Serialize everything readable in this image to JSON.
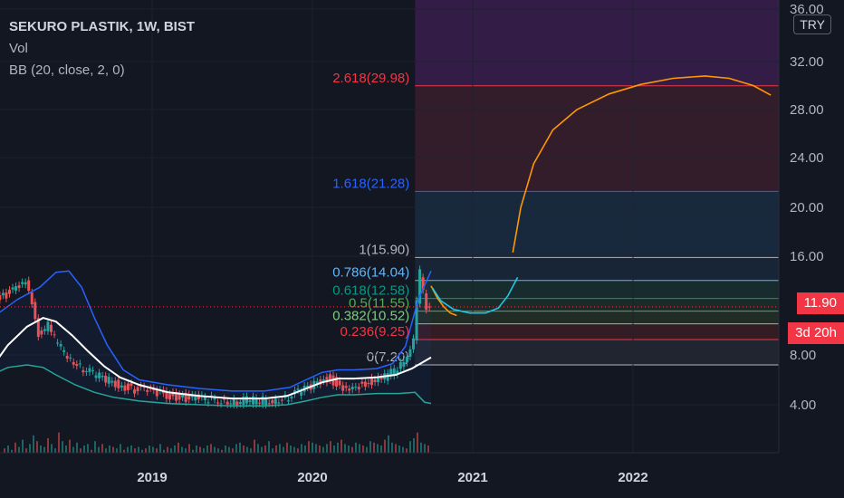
{
  "header": {
    "title": "SEKURO PLASTIK, 1W, BIST",
    "indicator_vol": "Vol",
    "indicator_bb": "BB (20, close, 2, 0)",
    "currency": "TRY"
  },
  "price_tags": {
    "last_price": "11.90",
    "countdown": "3d 20h"
  },
  "colors": {
    "background": "#131722",
    "up": "#26a69a",
    "down": "#ef5350",
    "bb_upper": "#2962ff",
    "bb_basis": "#ffffff",
    "bb_lower": "#26a69a",
    "projection": "#ff9800",
    "cyan_path": "#22c5e8",
    "last_price": "#f23645"
  },
  "chart_data": {
    "type": "candlestick",
    "y_axis": {
      "ticks": [
        "36.00",
        "32.00",
        "28.00",
        "24.00",
        "20.00",
        "16.00",
        "8.00",
        "4.00"
      ],
      "tick_values": [
        36,
        32,
        28,
        24,
        20,
        16,
        8,
        4
      ]
    },
    "x_axis": {
      "ticks": [
        "2019",
        "2020",
        "2021",
        "2022"
      ],
      "tick_values": [
        2019.0,
        2020.0,
        2021.0,
        2022.0
      ]
    },
    "last_price": 11.9,
    "fibonacci": [
      {
        "label": "0(7.20)",
        "level": 0,
        "price": 7.2,
        "color": "#b2b5be"
      },
      {
        "label": "0.236(9.25)",
        "level": 0.236,
        "price": 9.25,
        "color": "#f23645"
      },
      {
        "label": "0.382(10.52)",
        "level": 0.382,
        "price": 10.52,
        "color": "#81c784"
      },
      {
        "label": "0.5(11.55)",
        "level": 0.5,
        "price": 11.55,
        "color": "#4caf50"
      },
      {
        "label": "0.618(12.58)",
        "level": 0.618,
        "price": 12.58,
        "color": "#089981"
      },
      {
        "label": "0.786(14.04)",
        "level": 0.786,
        "price": 14.04,
        "color": "#64b5f6"
      },
      {
        "label": "1(15.90)",
        "level": 1,
        "price": 15.9,
        "color": "#b2b5be"
      },
      {
        "label": "1.618(21.28)",
        "level": 1.618,
        "price": 21.28,
        "color": "#2962ff"
      },
      {
        "label": "2.618(29.98)",
        "level": 2.618,
        "price": 29.98,
        "color": "#f23645"
      }
    ],
    "fib_start": 2020.64,
    "close_series": [
      [
        2018.0,
        12.2
      ],
      [
        2018.08,
        12.8
      ],
      [
        2018.16,
        13.3
      ],
      [
        2018.22,
        13.7
      ],
      [
        2018.26,
        12.0
      ],
      [
        2018.3,
        9.8
      ],
      [
        2018.36,
        10.4
      ],
      [
        2018.42,
        8.8
      ],
      [
        2018.48,
        8.0
      ],
      [
        2018.56,
        7.1
      ],
      [
        2018.64,
        6.5
      ],
      [
        2018.72,
        6.0
      ],
      [
        2018.8,
        5.6
      ],
      [
        2018.88,
        5.3
      ],
      [
        2018.96,
        5.1
      ],
      [
        2019.04,
        4.9
      ],
      [
        2019.12,
        4.7
      ],
      [
        2019.2,
        4.6
      ],
      [
        2019.28,
        4.5
      ],
      [
        2019.36,
        4.4
      ],
      [
        2019.44,
        4.4
      ],
      [
        2019.52,
        4.3
      ],
      [
        2019.6,
        4.4
      ],
      [
        2019.68,
        4.3
      ],
      [
        2019.76,
        4.4
      ],
      [
        2019.84,
        4.6
      ],
      [
        2019.92,
        5.0
      ],
      [
        2020.0,
        5.4
      ],
      [
        2020.06,
        5.9
      ],
      [
        2020.12,
        6.2
      ],
      [
        2020.18,
        5.3
      ],
      [
        2020.24,
        4.9
      ],
      [
        2020.3,
        5.5
      ],
      [
        2020.36,
        5.9
      ],
      [
        2020.42,
        6.0
      ],
      [
        2020.48,
        6.3
      ],
      [
        2020.54,
        7.0
      ],
      [
        2020.6,
        8.1
      ],
      [
        2020.64,
        9.5
      ],
      [
        2020.66,
        12.5
      ],
      [
        2020.68,
        14.6
      ],
      [
        2020.7,
        13.2
      ],
      [
        2020.72,
        12.0
      ],
      [
        2020.74,
        11.9
      ]
    ],
    "bb_upper": [
      [
        2018.0,
        11.0
      ],
      [
        2018.16,
        12.5
      ],
      [
        2018.3,
        13.5
      ],
      [
        2018.4,
        14.7
      ],
      [
        2018.48,
        14.8
      ],
      [
        2018.56,
        13.5
      ],
      [
        2018.64,
        11.0
      ],
      [
        2018.72,
        8.8
      ],
      [
        2018.82,
        6.8
      ],
      [
        2018.92,
        6.0
      ],
      [
        2019.1,
        5.6
      ],
      [
        2019.3,
        5.3
      ],
      [
        2019.5,
        5.1
      ],
      [
        2019.7,
        5.1
      ],
      [
        2019.86,
        5.4
      ],
      [
        2019.96,
        6.0
      ],
      [
        2020.06,
        6.6
      ],
      [
        2020.16,
        6.8
      ],
      [
        2020.26,
        6.8
      ],
      [
        2020.4,
        6.9
      ],
      [
        2020.5,
        7.3
      ],
      [
        2020.58,
        8.7
      ],
      [
        2020.66,
        12.5
      ],
      [
        2020.74,
        14.8
      ]
    ],
    "bb_basis": [
      [
        2018.0,
        7.0
      ],
      [
        2018.1,
        8.8
      ],
      [
        2018.22,
        10.3
      ],
      [
        2018.32,
        11.0
      ],
      [
        2018.4,
        10.7
      ],
      [
        2018.5,
        9.6
      ],
      [
        2018.6,
        8.3
      ],
      [
        2018.7,
        7.1
      ],
      [
        2018.8,
        6.2
      ],
      [
        2018.92,
        5.6
      ],
      [
        2019.1,
        5.0
      ],
      [
        2019.3,
        4.7
      ],
      [
        2019.5,
        4.5
      ],
      [
        2019.7,
        4.5
      ],
      [
        2019.84,
        4.7
      ],
      [
        2019.94,
        5.2
      ],
      [
        2020.06,
        5.8
      ],
      [
        2020.16,
        6.1
      ],
      [
        2020.26,
        6.1
      ],
      [
        2020.4,
        6.2
      ],
      [
        2020.52,
        6.4
      ],
      [
        2020.62,
        6.9
      ],
      [
        2020.74,
        7.8
      ]
    ],
    "bb_lower": [
      [
        2018.0,
        6.4
      ],
      [
        2018.1,
        7.0
      ],
      [
        2018.22,
        7.2
      ],
      [
        2018.32,
        7.0
      ],
      [
        2018.4,
        6.4
      ],
      [
        2018.52,
        5.6
      ],
      [
        2018.64,
        5.0
      ],
      [
        2018.76,
        4.6
      ],
      [
        2018.92,
        4.3
      ],
      [
        2019.1,
        4.1
      ],
      [
        2019.3,
        4.0
      ],
      [
        2019.5,
        3.9
      ],
      [
        2019.7,
        3.9
      ],
      [
        2019.84,
        4.0
      ],
      [
        2019.96,
        4.3
      ],
      [
        2020.06,
        4.6
      ],
      [
        2020.16,
        4.8
      ],
      [
        2020.26,
        4.8
      ],
      [
        2020.4,
        4.9
      ],
      [
        2020.54,
        4.9
      ],
      [
        2020.64,
        5.0
      ],
      [
        2020.7,
        4.2
      ],
      [
        2020.74,
        4.1
      ]
    ],
    "projection_orange": [
      [
        2021.25,
        16.3
      ],
      [
        2021.3,
        20.0
      ],
      [
        2021.38,
        23.5
      ],
      [
        2021.5,
        26.3
      ],
      [
        2021.65,
        28.0
      ],
      [
        2021.85,
        29.3
      ],
      [
        2022.05,
        30.1
      ],
      [
        2022.25,
        30.6
      ],
      [
        2022.45,
        30.8
      ],
      [
        2022.6,
        30.6
      ],
      [
        2022.75,
        30.0
      ],
      [
        2022.86,
        29.2
      ]
    ],
    "orange_small": [
      [
        2020.74,
        13.6
      ],
      [
        2020.78,
        12.6
      ],
      [
        2020.82,
        11.9
      ],
      [
        2020.86,
        11.4
      ],
      [
        2020.9,
        11.2
      ]
    ],
    "cyan_path": [
      [
        2020.75,
        13.4
      ],
      [
        2020.8,
        12.4
      ],
      [
        2020.88,
        11.7
      ],
      [
        2020.98,
        11.4
      ],
      [
        2021.08,
        11.4
      ],
      [
        2021.16,
        11.8
      ],
      [
        2021.22,
        12.8
      ],
      [
        2021.28,
        14.3
      ]
    ],
    "volume": [
      3,
      5,
      2,
      7,
      4,
      9,
      3,
      6,
      12,
      8,
      5,
      4,
      10,
      6,
      3,
      14,
      8,
      5,
      9,
      4,
      7,
      3,
      5,
      6,
      2,
      8,
      4,
      6,
      3,
      5,
      4,
      3,
      6,
      2,
      4,
      5,
      3,
      4,
      2,
      3,
      5,
      4,
      3,
      6,
      2,
      4,
      3,
      5,
      7,
      4,
      3,
      6,
      2,
      5,
      4,
      3,
      5,
      6,
      4,
      3,
      2,
      5,
      4,
      3,
      6,
      7,
      5,
      4,
      3,
      9,
      6,
      4,
      5,
      8,
      3,
      5,
      6,
      4,
      7,
      5,
      4,
      3,
      6,
      5,
      8,
      7,
      6,
      5,
      4,
      6,
      8,
      5,
      7,
      9,
      6,
      5,
      4,
      7,
      6,
      5,
      4,
      8,
      7,
      6,
      5,
      9,
      12,
      7,
      6,
      5,
      4,
      3,
      8,
      10,
      14,
      7,
      6,
      5
    ]
  }
}
